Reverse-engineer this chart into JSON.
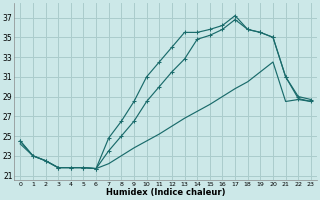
{
  "xlabel": "Humidex (Indice chaleur)",
  "background_color": "#cce8e8",
  "grid_color": "#aacccc",
  "line_color": "#1a6b6b",
  "xlim": [
    -0.5,
    23.5
  ],
  "ylim": [
    20.5,
    38.5
  ],
  "yticks": [
    21,
    23,
    25,
    27,
    29,
    31,
    33,
    35,
    37
  ],
  "xticks": [
    0,
    1,
    2,
    3,
    4,
    5,
    6,
    7,
    8,
    9,
    10,
    11,
    12,
    13,
    14,
    15,
    16,
    17,
    18,
    19,
    20,
    21,
    22,
    23
  ],
  "line1_x": [
    0,
    1,
    2,
    3,
    4,
    5,
    6,
    7,
    8,
    9,
    10,
    11,
    12,
    13,
    14,
    15,
    16,
    17,
    18,
    19,
    20,
    21,
    22,
    23
  ],
  "line1_y": [
    24.5,
    23.0,
    22.5,
    21.8,
    21.8,
    21.8,
    21.7,
    23.5,
    25.0,
    26.5,
    28.5,
    30.0,
    31.5,
    32.8,
    34.8,
    35.2,
    35.8,
    36.8,
    35.8,
    35.5,
    35.0,
    31.0,
    29.0,
    28.7
  ],
  "line2_x": [
    0,
    1,
    2,
    3,
    4,
    5,
    6,
    7,
    8,
    9,
    10,
    11,
    12,
    13,
    14,
    15,
    16,
    17,
    18,
    19,
    20,
    21,
    22,
    23
  ],
  "line2_y": [
    24.5,
    23.0,
    22.5,
    21.8,
    21.8,
    21.8,
    21.7,
    24.8,
    26.5,
    28.5,
    31.0,
    32.5,
    34.0,
    35.5,
    35.5,
    35.8,
    36.2,
    37.2,
    35.8,
    35.5,
    35.0,
    31.0,
    28.8,
    28.5
  ],
  "line3_x": [
    0,
    1,
    2,
    3,
    4,
    5,
    6,
    7,
    8,
    9,
    10,
    11,
    12,
    13,
    14,
    15,
    16,
    17,
    18,
    19,
    20,
    21,
    22,
    23
  ],
  "line3_y": [
    24.2,
    23.0,
    22.5,
    21.8,
    21.8,
    21.8,
    21.7,
    22.2,
    23.0,
    23.8,
    24.5,
    25.2,
    26.0,
    26.8,
    27.5,
    28.2,
    29.0,
    29.8,
    30.5,
    31.5,
    32.5,
    28.5,
    28.7,
    28.5
  ]
}
